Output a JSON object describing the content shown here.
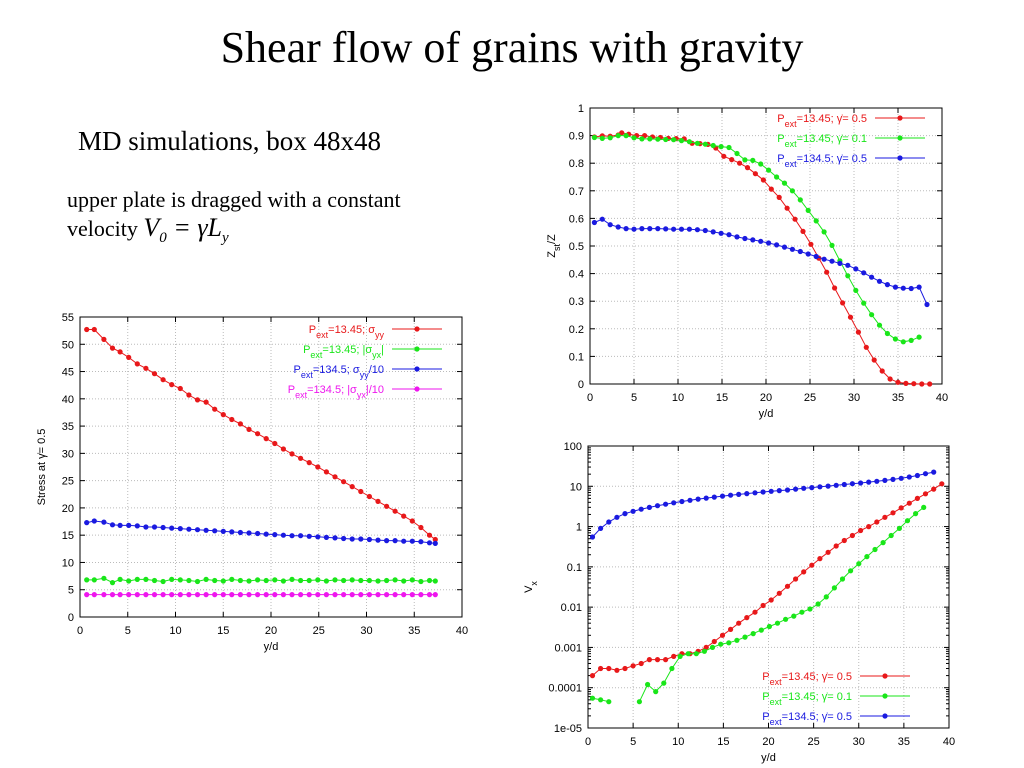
{
  "title": "Shear flow of grains with gravity",
  "subtitle": "MD simulations, box 48x48",
  "desc_line1": "upper plate is dragged with a constant",
  "desc_line2": "velocity",
  "equation": {
    "lhs": "V",
    "lhs_sub": "0",
    "eq": "=",
    "rhs": "γ̇L",
    "rhs_sub": "y"
  },
  "colors": {
    "red": "#e8181a",
    "green": "#19e619",
    "blue": "#1a1ae0",
    "magenta": "#ee16ee"
  },
  "chart_data": [
    {
      "id": "stress",
      "type": "line",
      "xlabel": "y/d",
      "ylabel": "Stress at γ̇= 0.5",
      "xlim": [
        0,
        40
      ],
      "ylim": [
        0,
        55
      ],
      "xticks": [
        0,
        5,
        10,
        15,
        20,
        25,
        30,
        35,
        40
      ],
      "yticks": [
        0,
        5,
        10,
        15,
        20,
        25,
        30,
        35,
        40,
        45,
        50,
        55
      ],
      "yscale": "linear",
      "grid": true,
      "legend_position": "top-right",
      "series": [
        {
          "name": "P_ext=13.45; σ_yy",
          "color": "red",
          "x": [
            0.7,
            1.5,
            2.5,
            3.4,
            4.2,
            5.1,
            6.0,
            6.9,
            7.8,
            8.7,
            9.6,
            10.5,
            11.4,
            12.3,
            13.2,
            14.1,
            15.0,
            15.9,
            16.8,
            17.7,
            18.6,
            19.5,
            20.4,
            21.3,
            22.2,
            23.1,
            24.0,
            24.9,
            25.8,
            26.7,
            27.6,
            28.5,
            29.4,
            30.3,
            31.2,
            32.1,
            33.0,
            33.9,
            34.8,
            35.7,
            36.6,
            37.2
          ],
          "y": [
            52.7,
            52.7,
            50.9,
            49.3,
            48.6,
            47.6,
            46.4,
            45.6,
            44.6,
            43.5,
            42.6,
            41.9,
            40.7,
            39.8,
            39.4,
            38.1,
            37.1,
            36.2,
            35.4,
            34.4,
            33.6,
            32.7,
            31.8,
            30.8,
            29.9,
            29.1,
            28.3,
            27.5,
            26.6,
            25.7,
            24.8,
            23.9,
            23.0,
            22.1,
            21.2,
            20.3,
            19.4,
            18.5,
            17.6,
            16.4,
            15.0,
            14.2
          ]
        },
        {
          "name": "P_ext=13.45; |σ_yx|",
          "color": "green",
          "x": [
            0.7,
            1.5,
            2.5,
            3.4,
            4.2,
            5.1,
            6.0,
            6.9,
            7.8,
            8.7,
            9.6,
            10.5,
            11.4,
            12.3,
            13.2,
            14.1,
            15.0,
            15.9,
            16.8,
            17.7,
            18.6,
            19.5,
            20.4,
            21.3,
            22.2,
            23.1,
            24.0,
            24.9,
            25.8,
            26.7,
            27.6,
            28.5,
            29.4,
            30.3,
            31.2,
            32.1,
            33.0,
            33.9,
            34.8,
            35.7,
            36.6,
            37.2
          ],
          "y": [
            6.8,
            6.8,
            7.1,
            6.3,
            6.9,
            6.6,
            6.9,
            6.9,
            6.7,
            6.5,
            6.9,
            6.8,
            6.7,
            6.5,
            6.9,
            6.7,
            6.6,
            6.9,
            6.7,
            6.6,
            6.8,
            6.7,
            6.8,
            6.6,
            6.9,
            6.7,
            6.7,
            6.8,
            6.6,
            6.8,
            6.7,
            6.8,
            6.7,
            6.7,
            6.6,
            6.7,
            6.8,
            6.6,
            6.8,
            6.5,
            6.7,
            6.6
          ]
        },
        {
          "name": "P_ext=134.5; σ_yy/10",
          "color": "blue",
          "x": [
            0.7,
            1.5,
            2.5,
            3.4,
            4.2,
            5.1,
            6.0,
            6.9,
            7.8,
            8.7,
            9.6,
            10.5,
            11.4,
            12.3,
            13.2,
            14.1,
            15.0,
            15.9,
            16.8,
            17.7,
            18.6,
            19.5,
            20.4,
            21.3,
            22.2,
            23.1,
            24.0,
            24.9,
            25.8,
            26.7,
            27.6,
            28.5,
            29.4,
            30.3,
            31.2,
            32.1,
            33.0,
            33.9,
            34.8,
            35.7,
            36.6,
            37.2
          ],
          "y": [
            17.3,
            17.6,
            17.4,
            16.9,
            16.8,
            16.8,
            16.7,
            16.5,
            16.5,
            16.4,
            16.3,
            16.2,
            16.1,
            16.0,
            15.9,
            15.8,
            15.7,
            15.6,
            15.5,
            15.4,
            15.3,
            15.2,
            15.1,
            15.0,
            14.9,
            14.9,
            14.8,
            14.7,
            14.6,
            14.5,
            14.4,
            14.3,
            14.3,
            14.2,
            14.1,
            14.0,
            14.0,
            13.9,
            13.9,
            13.8,
            13.6,
            13.5
          ]
        },
        {
          "name": "P_ext=134.5; |σ_yx|/10",
          "color": "magenta",
          "x": [
            0.7,
            1.5,
            2.5,
            3.4,
            4.2,
            5.1,
            6.0,
            6.9,
            7.8,
            8.7,
            9.6,
            10.5,
            11.4,
            12.3,
            13.2,
            14.1,
            15.0,
            15.9,
            16.8,
            17.7,
            18.6,
            19.5,
            20.4,
            21.3,
            22.2,
            23.1,
            24.0,
            24.9,
            25.8,
            26.7,
            27.6,
            28.5,
            29.4,
            30.3,
            31.2,
            32.1,
            33.0,
            33.9,
            34.8,
            35.7,
            36.6,
            37.2
          ],
          "y": [
            4.1,
            4.1,
            4.1,
            4.1,
            4.1,
            4.1,
            4.1,
            4.1,
            4.1,
            4.1,
            4.1,
            4.1,
            4.1,
            4.1,
            4.1,
            4.1,
            4.1,
            4.1,
            4.1,
            4.1,
            4.1,
            4.1,
            4.1,
            4.1,
            4.1,
            4.1,
            4.1,
            4.1,
            4.1,
            4.1,
            4.1,
            4.1,
            4.1,
            4.1,
            4.1,
            4.1,
            4.1,
            4.1,
            4.1,
            4.1,
            4.1,
            4.1
          ]
        }
      ]
    },
    {
      "id": "zratio",
      "type": "line",
      "xlabel": "y/d",
      "ylabel": "Z_st/Z",
      "xlim": [
        0,
        40
      ],
      "ylim": [
        0,
        1
      ],
      "xticks": [
        0,
        5,
        10,
        15,
        20,
        25,
        30,
        35,
        40
      ],
      "yticks": [
        0,
        0.1,
        0.2,
        0.3,
        0.4,
        0.5,
        0.6,
        0.7,
        0.8,
        0.9,
        1
      ],
      "yscale": "linear",
      "grid": true,
      "legend_position": "top-right",
      "series": [
        {
          "name": "P_ext=13.45; γ̇= 0.5",
          "color": "red",
          "x": [
            0.5,
            1.4,
            2.3,
            3.2,
            3.6,
            4.4,
            5.3,
            6.2,
            7.1,
            8.0,
            8.9,
            9.8,
            10.7,
            11.6,
            12.5,
            13.4,
            14.3,
            15.2,
            16.1,
            17.0,
            17.9,
            18.8,
            19.7,
            20.6,
            21.5,
            22.4,
            23.3,
            24.2,
            25.1,
            26.0,
            26.9,
            27.8,
            28.7,
            29.6,
            30.5,
            31.4,
            32.3,
            33.2,
            34.1,
            35.0,
            35.9,
            36.8,
            37.7,
            38.6
          ],
          "y": [
            0.895,
            0.899,
            0.898,
            0.902,
            0.91,
            0.905,
            0.9,
            0.9,
            0.895,
            0.893,
            0.89,
            0.889,
            0.888,
            0.872,
            0.871,
            0.868,
            0.855,
            0.825,
            0.813,
            0.8,
            0.784,
            0.762,
            0.739,
            0.706,
            0.676,
            0.637,
            0.597,
            0.553,
            0.506,
            0.456,
            0.405,
            0.348,
            0.294,
            0.242,
            0.188,
            0.133,
            0.087,
            0.047,
            0.018,
            0.006,
            0.002,
            0.001,
            0,
            0
          ]
        },
        {
          "name": "P_ext=13.45; γ̇= 0.1",
          "color": "green",
          "x": [
            0.5,
            1.4,
            2.3,
            3.2,
            4.1,
            5.0,
            5.9,
            6.8,
            7.7,
            8.6,
            9.5,
            10.4,
            11.3,
            12.2,
            13.1,
            14.0,
            14.9,
            15.8,
            16.7,
            17.6,
            18.5,
            19.4,
            20.3,
            21.2,
            22.1,
            23.0,
            23.9,
            24.8,
            25.7,
            26.6,
            27.5,
            28.4,
            29.3,
            30.2,
            31.1,
            32.0,
            32.9,
            33.8,
            34.7,
            35.6,
            36.5,
            37.4
          ],
          "y": [
            0.893,
            0.89,
            0.892,
            0.9,
            0.9,
            0.892,
            0.888,
            0.888,
            0.887,
            0.886,
            0.885,
            0.882,
            0.878,
            0.872,
            0.869,
            0.864,
            0.86,
            0.857,
            0.835,
            0.812,
            0.81,
            0.797,
            0.775,
            0.75,
            0.728,
            0.7,
            0.667,
            0.629,
            0.591,
            0.551,
            0.502,
            0.446,
            0.392,
            0.339,
            0.293,
            0.251,
            0.213,
            0.183,
            0.163,
            0.153,
            0.158,
            0.17
          ]
        },
        {
          "name": "P_ext=134.5; γ̇= 0.5",
          "color": "blue",
          "x": [
            0.5,
            1.4,
            2.3,
            3.2,
            4.1,
            5.0,
            5.9,
            6.8,
            7.7,
            8.6,
            9.5,
            10.4,
            11.3,
            12.2,
            13.1,
            14.0,
            14.9,
            15.8,
            16.7,
            17.6,
            18.5,
            19.4,
            20.3,
            21.2,
            22.1,
            23.0,
            23.9,
            24.8,
            25.7,
            26.6,
            27.5,
            28.4,
            29.3,
            30.2,
            31.1,
            32.0,
            32.9,
            33.8,
            34.7,
            35.6,
            36.5,
            37.4,
            38.3
          ],
          "y": [
            0.585,
            0.597,
            0.577,
            0.569,
            0.563,
            0.561,
            0.563,
            0.563,
            0.563,
            0.562,
            0.561,
            0.561,
            0.561,
            0.559,
            0.556,
            0.551,
            0.546,
            0.541,
            0.533,
            0.527,
            0.522,
            0.517,
            0.511,
            0.504,
            0.496,
            0.488,
            0.48,
            0.471,
            0.462,
            0.452,
            0.445,
            0.437,
            0.43,
            0.417,
            0.403,
            0.387,
            0.372,
            0.36,
            0.351,
            0.347,
            0.346,
            0.351,
            0.288
          ]
        }
      ]
    },
    {
      "id": "velocity",
      "type": "line",
      "xlabel": "y/d",
      "ylabel": "V_x",
      "xlim": [
        0,
        40
      ],
      "ylim": [
        1e-05,
        100
      ],
      "xticks": [
        0,
        5,
        10,
        15,
        20,
        25,
        30,
        35,
        40
      ],
      "yticks": [
        1e-05,
        0.0001,
        0.001,
        0.01,
        0.1,
        1,
        10,
        100
      ],
      "yticklabels": [
        "1e-05",
        "0.0001",
        "0.001",
        "0.01",
        "0.1",
        "1",
        "10",
        "100"
      ],
      "yscale": "log",
      "grid": true,
      "legend_position": "bottom-right",
      "series": [
        {
          "name": "P_ext=13.45; γ̇= 0.5",
          "color": "red",
          "x": [
            0.5,
            1.4,
            2.3,
            3.2,
            4.1,
            5.0,
            5.9,
            6.8,
            7.7,
            8.6,
            9.5,
            10.4,
            11.3,
            12.2,
            13.1,
            14.0,
            14.9,
            15.8,
            16.7,
            17.6,
            18.5,
            19.4,
            20.3,
            21.2,
            22.1,
            23.0,
            23.9,
            24.8,
            25.7,
            26.6,
            27.5,
            28.4,
            29.3,
            30.2,
            31.1,
            32.0,
            32.9,
            33.8,
            34.7,
            35.6,
            36.5,
            37.4,
            38.3,
            39.2
          ],
          "y": [
            0.0002,
            0.0003,
            0.0003,
            0.00027,
            0.0003,
            0.00035,
            0.0004,
            0.0005,
            0.0005,
            0.0005,
            0.0006,
            0.0007,
            0.0007,
            0.0008,
            0.001,
            0.0014,
            0.002,
            0.0028,
            0.004,
            0.0055,
            0.0075,
            0.011,
            0.015,
            0.022,
            0.033,
            0.05,
            0.075,
            0.11,
            0.16,
            0.23,
            0.33,
            0.45,
            0.6,
            0.8,
            1.0,
            1.3,
            1.7,
            2.2,
            2.9,
            3.8,
            5.0,
            6.5,
            8.5,
            11.5
          ]
        },
        {
          "name": "P_ext=13.45; γ̇= 0.1",
          "color": "green",
          "x": [
            0.5,
            1.4,
            2.3,
            5.7,
            6.6,
            7.5,
            8.4,
            9.3,
            10.2,
            11.1,
            12.0,
            12.9,
            13.8,
            14.7,
            15.6,
            16.5,
            17.4,
            18.3,
            19.2,
            20.1,
            21.0,
            21.9,
            22.8,
            23.7,
            24.6,
            25.5,
            26.4,
            27.3,
            28.2,
            29.1,
            30.0,
            30.9,
            31.8,
            32.7,
            33.6,
            34.5,
            35.4,
            36.3,
            37.2
          ],
          "y": [
            5.5e-05,
            5e-05,
            4.5e-05,
            4.5e-05,
            0.00012,
            8e-05,
            0.00013,
            0.0003,
            0.0006,
            0.0007,
            0.0007,
            0.0008,
            0.001,
            0.0012,
            0.0013,
            0.0015,
            0.0018,
            0.0022,
            0.0027,
            0.0033,
            0.004,
            0.005,
            0.006,
            0.0075,
            0.009,
            0.012,
            0.018,
            0.03,
            0.05,
            0.08,
            0.12,
            0.18,
            0.27,
            0.4,
            0.6,
            0.9,
            1.4,
            2.1,
            3.0
          ]
        },
        {
          "name": "P_ext=134.5; γ̇= 0.5",
          "color": "blue",
          "x": [
            0.5,
            1.4,
            2.3,
            3.2,
            4.1,
            5.0,
            5.9,
            6.8,
            7.7,
            8.6,
            9.5,
            10.4,
            11.3,
            12.2,
            13.1,
            14.0,
            14.9,
            15.8,
            16.7,
            17.6,
            18.5,
            19.4,
            20.3,
            21.2,
            22.1,
            23.0,
            23.9,
            24.8,
            25.7,
            26.6,
            27.5,
            28.4,
            29.3,
            30.2,
            31.1,
            32.0,
            32.9,
            33.8,
            34.7,
            35.6,
            36.5,
            37.4,
            38.3
          ],
          "y": [
            0.55,
            0.9,
            1.3,
            1.7,
            2.1,
            2.4,
            2.7,
            3.0,
            3.3,
            3.6,
            3.9,
            4.2,
            4.5,
            4.8,
            5.1,
            5.4,
            5.7,
            6.0,
            6.3,
            6.6,
            6.9,
            7.2,
            7.5,
            7.8,
            8.1,
            8.5,
            8.9,
            9.3,
            9.7,
            10.1,
            10.6,
            11.1,
            11.6,
            12.1,
            12.7,
            13.3,
            14.0,
            14.8,
            15.8,
            17.0,
            18.5,
            20.5,
            22.5
          ]
        }
      ]
    }
  ]
}
